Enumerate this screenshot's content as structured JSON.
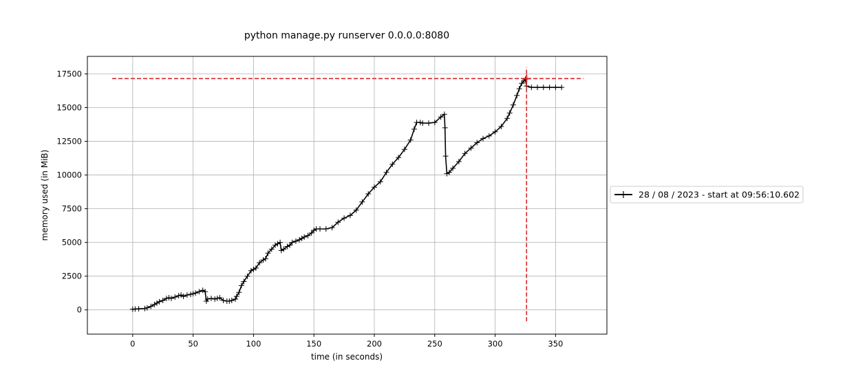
{
  "colors": {
    "series": "#000000",
    "marker_lines": "#d62728",
    "grid": "#b0b0b0",
    "background": "#ffffff"
  },
  "chart_data": {
    "type": "line",
    "title": "python manage.py runserver 0.0.0.0:8080",
    "xlabel": "time (in seconds)",
    "ylabel": "memory used (in MiB)",
    "xlim": [
      -37.5,
      392.5
    ],
    "ylim": [
      -1800,
      18800
    ],
    "xticks": [
      0,
      50,
      100,
      150,
      200,
      250,
      300,
      350
    ],
    "yticks": [
      0,
      2500,
      5000,
      7500,
      10000,
      12500,
      15000,
      17500
    ],
    "grid": true,
    "legend_position": "right-outside",
    "marker": "+",
    "series": [
      {
        "name": "28 / 08 / 2023 - start at 09:56:10.602",
        "x": [
          0,
          2,
          5,
          10,
          12,
          15,
          18,
          20,
          22,
          25,
          28,
          30,
          32,
          35,
          38,
          40,
          42,
          45,
          48,
          50,
          52,
          55,
          58,
          60,
          61,
          62,
          65,
          68,
          70,
          72,
          75,
          78,
          80,
          82,
          85,
          86,
          88,
          90,
          92,
          95,
          98,
          100,
          102,
          105,
          108,
          110,
          112,
          115,
          118,
          120,
          122,
          123,
          125,
          128,
          130,
          132,
          135,
          138,
          140,
          142,
          145,
          148,
          150,
          152,
          155,
          160,
          165,
          170,
          175,
          180,
          185,
          190,
          195,
          200,
          205,
          210,
          215,
          220,
          225,
          230,
          233,
          235,
          238,
          240,
          245,
          250,
          255,
          258,
          258.5,
          259,
          260,
          262,
          265,
          270,
          275,
          280,
          285,
          290,
          295,
          300,
          305,
          310,
          312,
          315,
          318,
          320,
          322,
          324,
          325,
          326,
          330,
          335,
          340,
          345,
          350,
          355
        ],
        "values": [
          50,
          60,
          80,
          100,
          150,
          250,
          400,
          500,
          600,
          700,
          850,
          900,
          850,
          950,
          1050,
          1100,
          1000,
          1100,
          1150,
          1200,
          1250,
          1350,
          1450,
          1350,
          650,
          800,
          850,
          800,
          850,
          900,
          700,
          650,
          650,
          700,
          800,
          1000,
          1300,
          1800,
          2100,
          2500,
          2900,
          3000,
          3100,
          3500,
          3700,
          3800,
          4200,
          4500,
          4800,
          4900,
          5000,
          4400,
          4500,
          4700,
          4800,
          5000,
          5100,
          5200,
          5300,
          5400,
          5500,
          5700,
          5900,
          6000,
          6000,
          6000,
          6100,
          6500,
          6800,
          7000,
          7400,
          8000,
          8600,
          9100,
          9500,
          10200,
          10800,
          11300,
          11900,
          12600,
          13400,
          13900,
          13900,
          13850,
          13850,
          13900,
          14300,
          14500,
          13500,
          11400,
          10100,
          10200,
          10500,
          11000,
          11600,
          12000,
          12400,
          12700,
          12900,
          13200,
          13600,
          14200,
          14600,
          15200,
          15900,
          16400,
          16800,
          17000,
          17100,
          16600,
          16500,
          16500,
          16500,
          16500,
          16500,
          16500
        ]
      }
    ],
    "peak_markers": {
      "horizontal_y": 17150,
      "horizontal_x_range": [
        -17,
        373
      ],
      "vertical_x": 326,
      "vertical_y_range": [
        -850,
        18000
      ]
    }
  }
}
